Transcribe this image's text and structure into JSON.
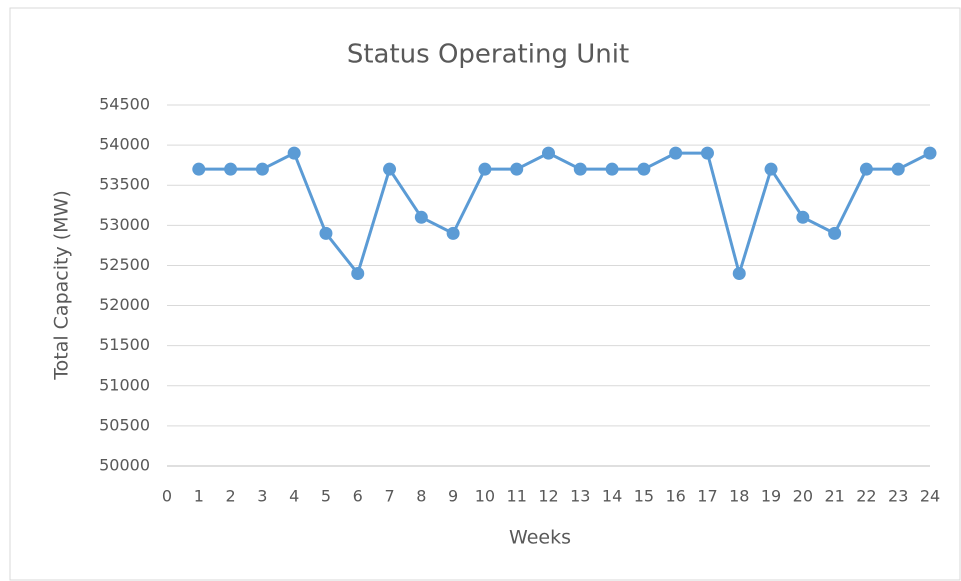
{
  "chart_data": {
    "type": "line",
    "title": "Status Operating Unit",
    "xlabel": "Weeks",
    "ylabel": "Total Capacity (MW)",
    "x": [
      1,
      2,
      3,
      4,
      5,
      6,
      7,
      8,
      9,
      10,
      11,
      12,
      13,
      14,
      15,
      16,
      17,
      18,
      19,
      20,
      21,
      22,
      23,
      24
    ],
    "series": [
      {
        "color": "#5b9bd5",
        "values": [
          53700,
          53700,
          53700,
          53900,
          52900,
          52400,
          53700,
          53100,
          52900,
          53700,
          53700,
          53900,
          53700,
          53700,
          53700,
          53900,
          53900,
          52400,
          53700,
          53100,
          52900,
          53700,
          53700,
          53900
        ]
      }
    ],
    "xlim": [
      0,
      24
    ],
    "xticks": [
      0,
      1,
      2,
      3,
      4,
      5,
      6,
      7,
      8,
      9,
      10,
      11,
      12,
      13,
      14,
      15,
      16,
      17,
      18,
      19,
      20,
      21,
      22,
      23,
      24
    ],
    "ylim": [
      50000,
      54500
    ],
    "yticks": [
      50000,
      50500,
      51000,
      51500,
      52000,
      52500,
      53000,
      53500,
      54000,
      54500
    ],
    "grid": true
  }
}
